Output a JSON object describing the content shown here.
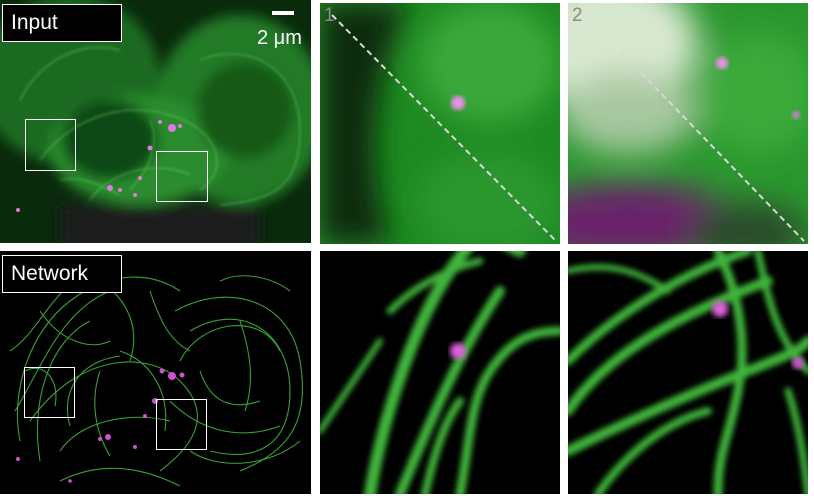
{
  "panels": {
    "input": {
      "label": "Input"
    },
    "network": {
      "label": "Network"
    },
    "zoom_1": {
      "number": "1"
    },
    "zoom_2": {
      "number": "2"
    }
  },
  "scale_bar": {
    "label": "2 μm"
  },
  "colors": {
    "network_channel": "#3fc03a",
    "spot_channel": "#d040d0",
    "background": "#000000",
    "annotation": "#ffffff"
  }
}
